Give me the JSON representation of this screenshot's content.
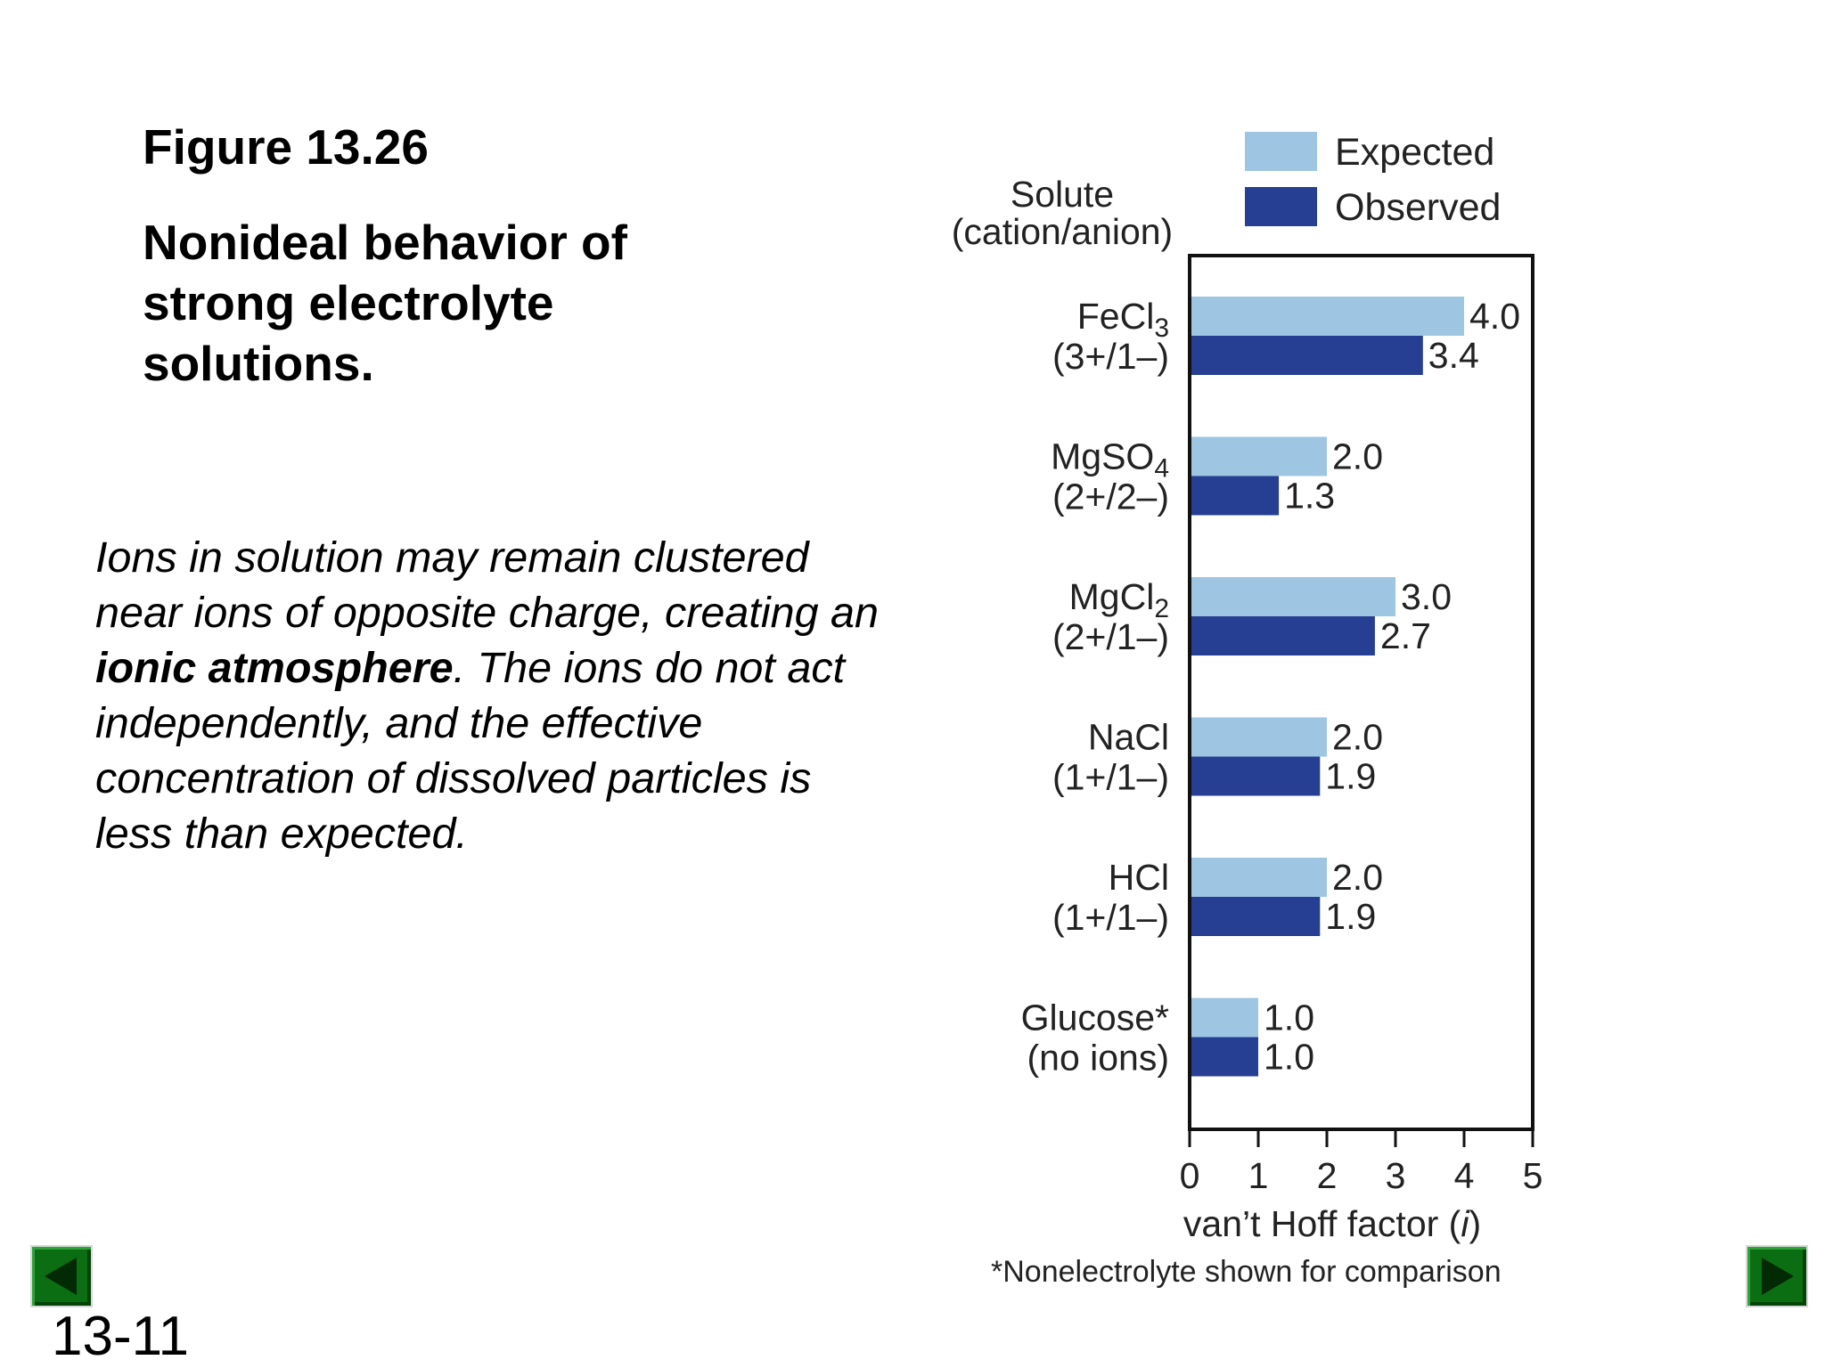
{
  "slide": {
    "title": "Figure 13.26",
    "subtitle": "Nonideal behavior of strong electrolyte solutions.",
    "caption": {
      "part1": "Ions in solution may remain clustered near ions of opposite charge, creating an ",
      "emphasis": "ionic atmosphere",
      "part2": ". The ions do not act independently, and the effective concentration of dissolved particles is less than expected."
    },
    "slide_number": "13-11",
    "nav": {
      "prev_icon": "triangle-left-icon",
      "next_icon": "triangle-right-icon",
      "button_color": "#0b6e12"
    }
  },
  "chart_data": {
    "type": "bar",
    "orientation": "horizontal",
    "category_header": [
      "Solute",
      "(cation/anion)"
    ],
    "categories": [
      {
        "name": "FeCl",
        "sub": "3",
        "ions": "(3+/1–)"
      },
      {
        "name": "MgSO",
        "sub": "4",
        "ions": "(2+/2–)"
      },
      {
        "name": "MgCl",
        "sub": "2",
        "ions": "(2+/1–)"
      },
      {
        "name": "NaCl",
        "sub": "",
        "ions": "(1+/1–)"
      },
      {
        "name": "HCl",
        "sub": "",
        "ions": "(1+/1–)"
      },
      {
        "name": "Glucose*",
        "sub": "",
        "ions": "(no ions)"
      }
    ],
    "series": [
      {
        "name": "Expected",
        "color": "#9ec6e2",
        "values": [
          4.0,
          2.0,
          3.0,
          2.0,
          2.0,
          1.0
        ],
        "labels": [
          "4.0",
          "2.0",
          "3.0",
          "2.0",
          "2.0",
          "1.0"
        ]
      },
      {
        "name": "Observed",
        "color": "#263f92",
        "values": [
          3.4,
          1.3,
          2.7,
          1.9,
          1.9,
          1.0
        ],
        "labels": [
          "3.4",
          "1.3",
          "2.7",
          "1.9",
          "1.9",
          "1.0"
        ]
      }
    ],
    "xlabel": {
      "text": "van’t Hoff factor (",
      "var": "i",
      "close": ")"
    },
    "xlim": [
      0,
      5
    ],
    "xticks": [
      "0",
      "1",
      "2",
      "3",
      "4",
      "5"
    ],
    "footnote": "*Nonelectrolyte shown for comparison",
    "legend_position": "top-right",
    "grid": false
  }
}
